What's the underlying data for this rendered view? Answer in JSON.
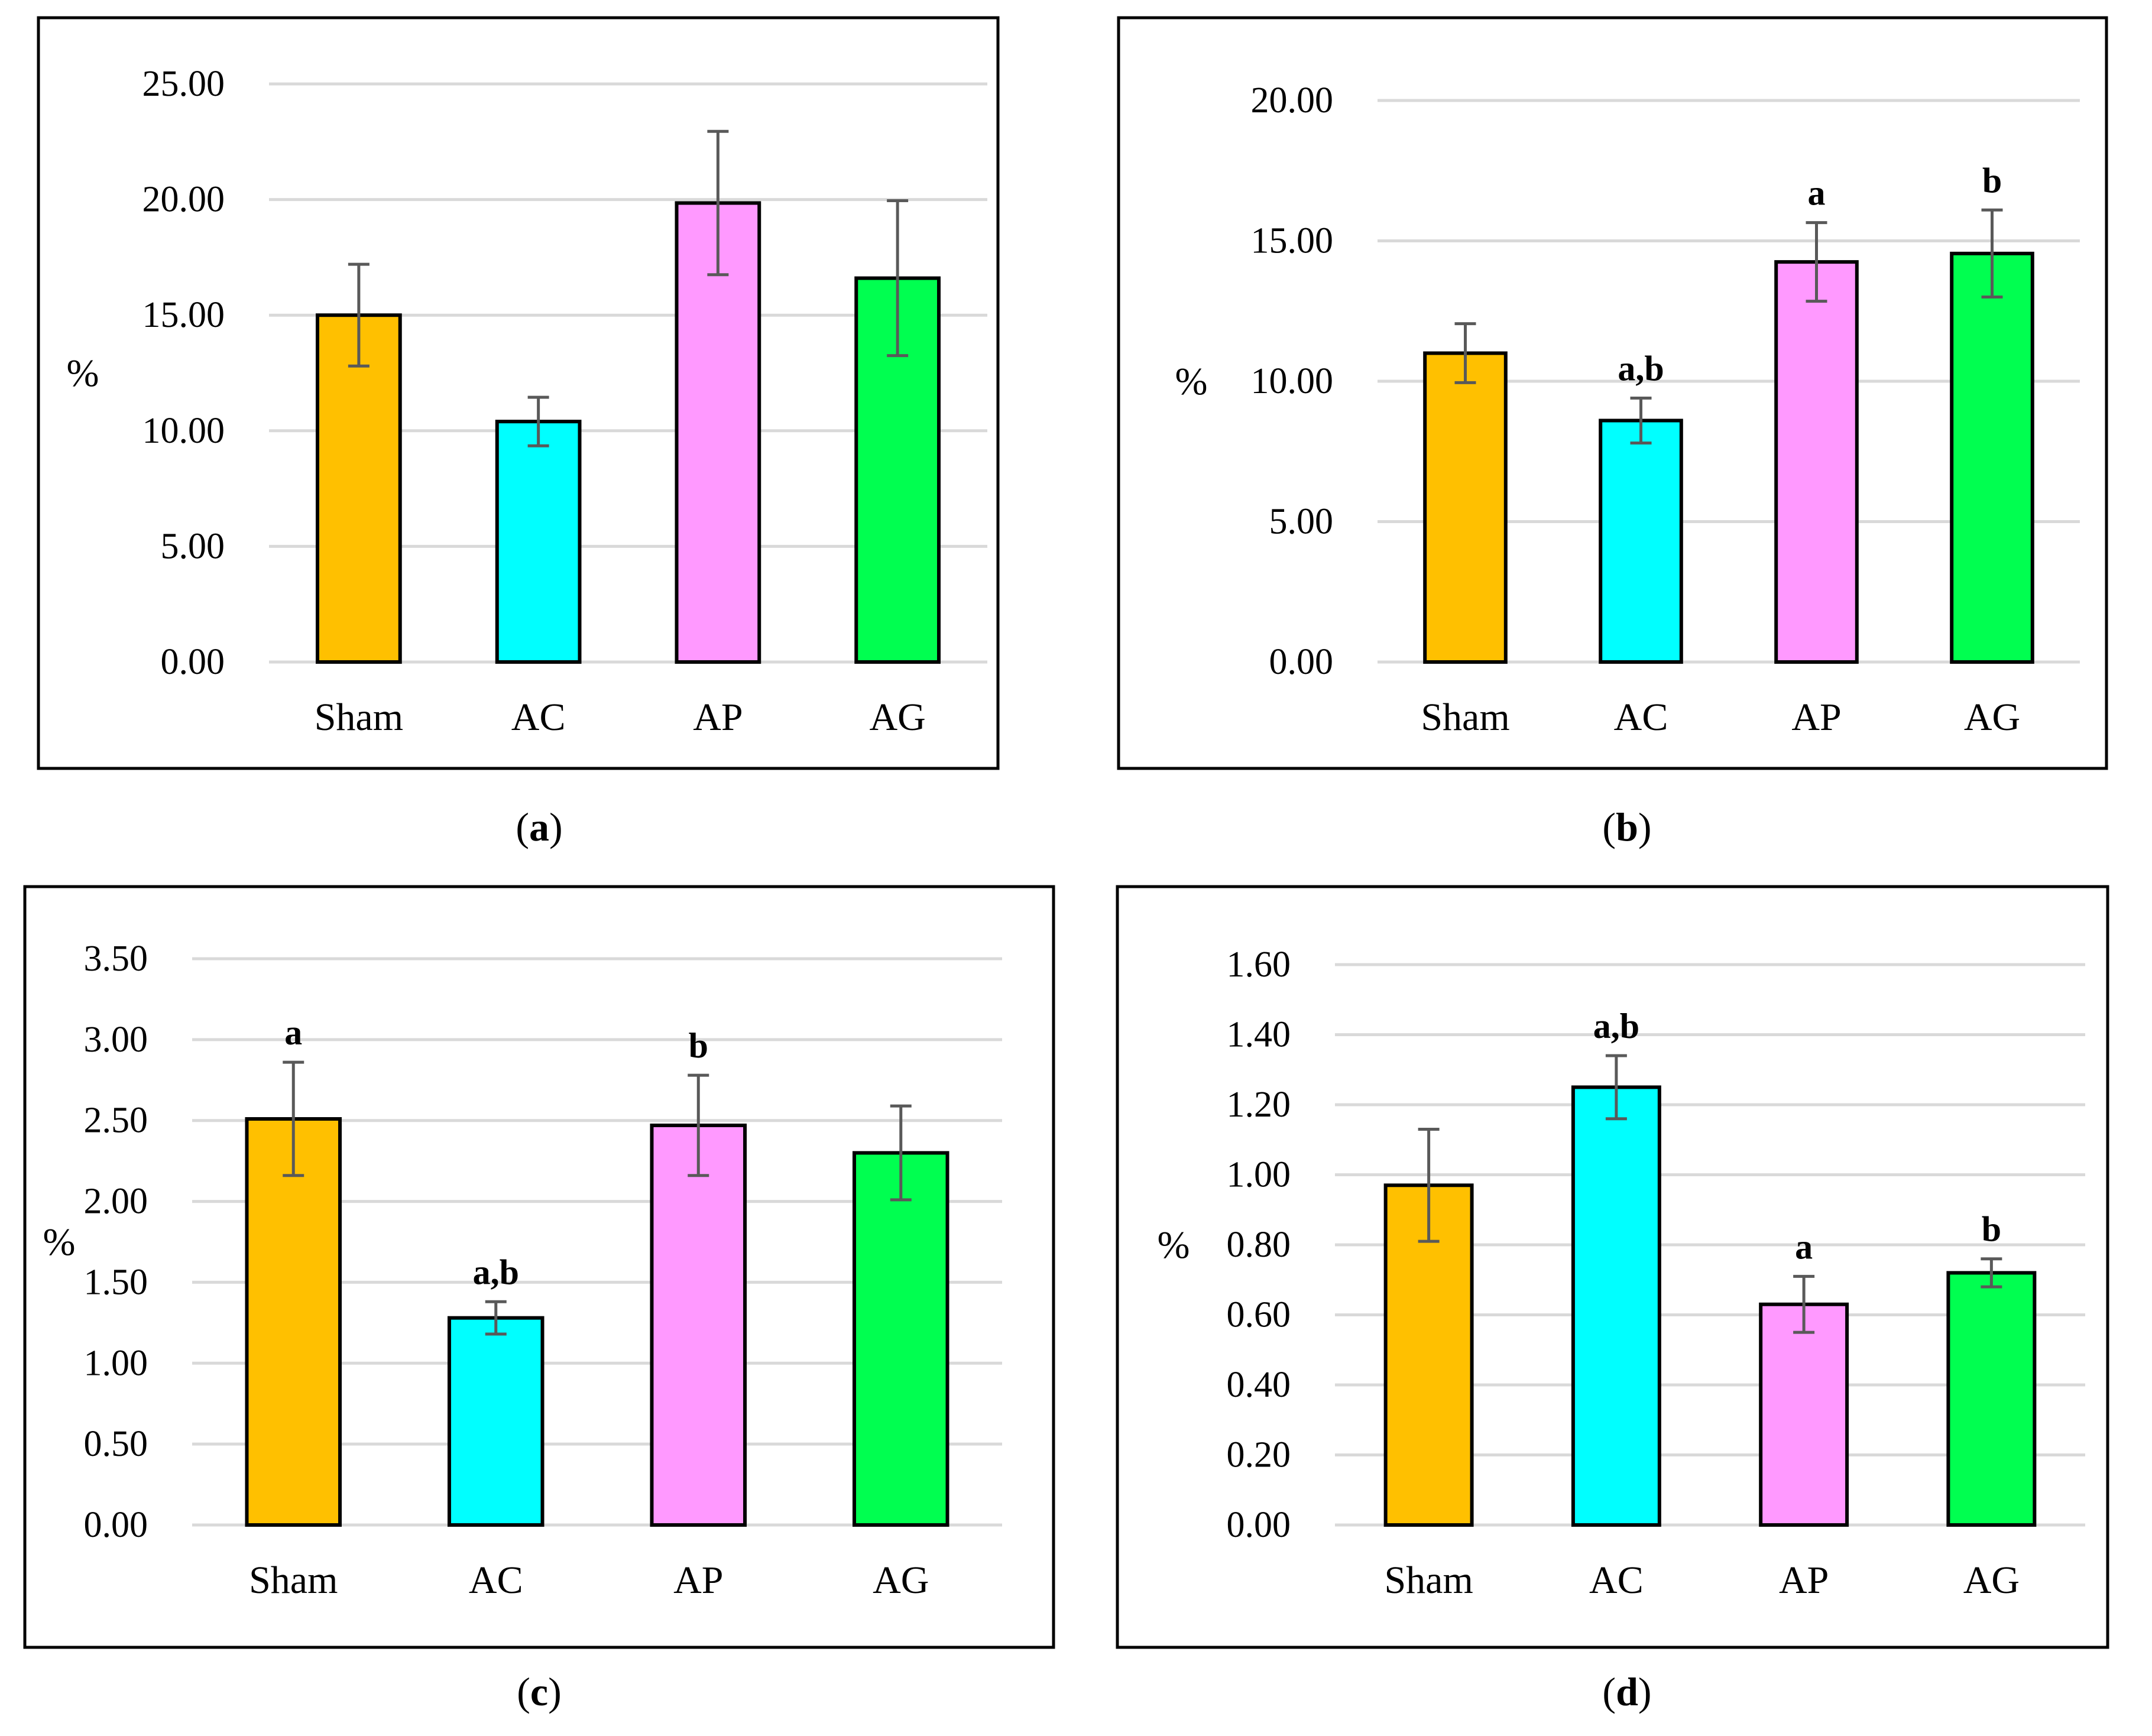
{
  "figure": {
    "category_colors": {
      "Sham": "#FFC000",
      "AC": "#00FFFF",
      "AP": "#FF99FF",
      "AG": "#00FF50"
    },
    "colors": {
      "gridline": "#d9d9d9",
      "error_bar": "#595959",
      "bar_outline": "#000000",
      "frame": "#000000"
    }
  },
  "chart_data": [
    {
      "panel_label": "a",
      "type": "bar",
      "ylabel": "%",
      "categories": [
        "Sham",
        "AC",
        "AP",
        "AG"
      ],
      "values": [
        15.0,
        10.4,
        19.85,
        16.6
      ],
      "errors": [
        2.2,
        1.05,
        3.1,
        3.35
      ],
      "annotations": [
        "",
        "",
        "",
        ""
      ],
      "ylim": [
        0,
        25
      ],
      "yticks": [
        0,
        5,
        10,
        15,
        20,
        25
      ],
      "yticklabels": [
        "0.00",
        "5.00",
        "10.00",
        "15.00",
        "20.00",
        "25.00"
      ],
      "grid": true
    },
    {
      "panel_label": "b",
      "type": "bar",
      "ylabel": "%",
      "categories": [
        "Sham",
        "AC",
        "AP",
        "AG"
      ],
      "values": [
        11.0,
        8.6,
        14.25,
        14.55
      ],
      "errors": [
        1.05,
        0.8,
        1.4,
        1.55
      ],
      "annotations": [
        "",
        "a,b",
        "a",
        "b"
      ],
      "ylim": [
        0,
        20
      ],
      "yticks": [
        0,
        5,
        10,
        15,
        20
      ],
      "yticklabels": [
        "0.00",
        "5.00",
        "10.00",
        "15.00",
        "20.00"
      ],
      "grid": true
    },
    {
      "panel_label": "c",
      "type": "bar",
      "ylabel": "%",
      "categories": [
        "Sham",
        "AC",
        "AP",
        "AG"
      ],
      "values": [
        2.51,
        1.28,
        2.47,
        2.3
      ],
      "errors": [
        0.35,
        0.1,
        0.31,
        0.29
      ],
      "annotations": [
        "a",
        "a,b",
        "b",
        ""
      ],
      "ylim": [
        0,
        3.5
      ],
      "yticks": [
        0,
        0.5,
        1.0,
        1.5,
        2.0,
        2.5,
        3.0,
        3.5
      ],
      "yticklabels": [
        "0.00",
        "0.50",
        "1.00",
        "1.50",
        "2.00",
        "2.50",
        "3.00",
        "3.50"
      ],
      "grid": true
    },
    {
      "panel_label": "d",
      "type": "bar",
      "ylabel": "%",
      "categories": [
        "Sham",
        "AC",
        "AP",
        "AG"
      ],
      "values": [
        0.97,
        1.25,
        0.63,
        0.72
      ],
      "errors": [
        0.16,
        0.09,
        0.08,
        0.04
      ],
      "annotations": [
        "",
        "a,b",
        "a",
        "b"
      ],
      "ylim": [
        0,
        1.6
      ],
      "yticks": [
        0,
        0.2,
        0.4,
        0.6,
        0.8,
        1.0,
        1.2,
        1.4,
        1.6
      ],
      "yticklabels": [
        "0.00",
        "0.20",
        "0.40",
        "0.60",
        "0.80",
        "1.00",
        "1.20",
        "1.40",
        "1.60"
      ],
      "grid": true
    }
  ]
}
